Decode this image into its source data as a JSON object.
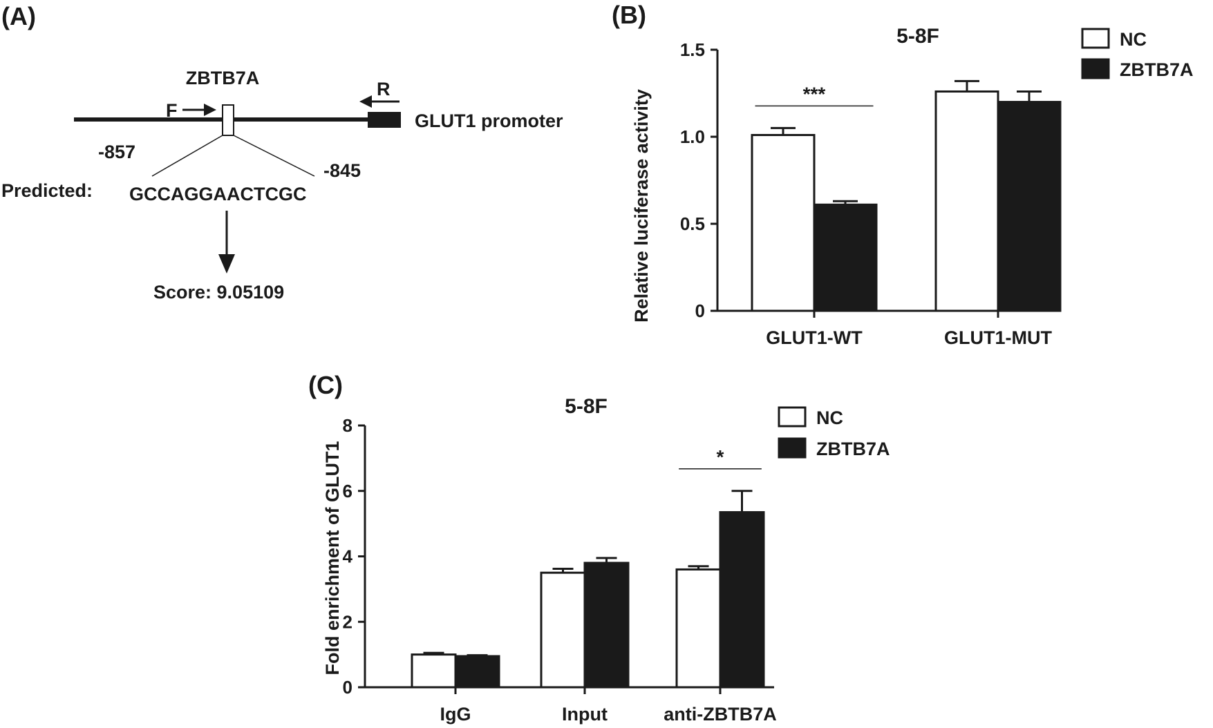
{
  "panel_labels": {
    "a": "(A)",
    "b": "(B)",
    "c": "(C)"
  },
  "diagram": {
    "tf_name": "ZBTB7A",
    "forward_primer": "F",
    "reverse_primer": "R",
    "promoter_label": "GLUT1 promoter",
    "start_position": "-857",
    "end_position": "-845",
    "predicted_label": "Predicted:",
    "sequence": "GCCAGGAACTCGC",
    "score_text": "Score: 9.05109"
  },
  "chart_data": [
    {
      "id": "B",
      "type": "bar",
      "title": "5-8F",
      "xlabel": "",
      "ylabel": "Relative luciferase activity",
      "ylim": [
        0,
        1.5
      ],
      "yticks": [
        "0",
        "0.5",
        "1.0",
        "1.5"
      ],
      "ytick_values": [
        0,
        0.5,
        1.0,
        1.5
      ],
      "categories": [
        "GLUT1-WT",
        "GLUT1-MUT"
      ],
      "series": [
        {
          "name": "NC",
          "color": "#ffffff",
          "values": [
            1.01,
            1.26
          ],
          "errors": [
            0.04,
            0.06
          ]
        },
        {
          "name": "ZBTB7A",
          "color": "#1a1a1a",
          "values": [
            0.61,
            1.2
          ],
          "errors": [
            0.02,
            0.06
          ]
        }
      ],
      "significance": [
        {
          "category": "GLUT1-WT",
          "label": "***"
        }
      ],
      "legend": "top-right",
      "grid": false
    },
    {
      "id": "C",
      "type": "bar",
      "title": "5-8F",
      "xlabel": "",
      "ylabel": "Fold enrichment of GLUT1",
      "ylim": [
        0,
        8
      ],
      "yticks": [
        "0",
        "2",
        "4",
        "6",
        "8"
      ],
      "ytick_values": [
        0,
        2,
        4,
        6,
        8
      ],
      "categories": [
        "IgG",
        "Input",
        "anti-ZBTB7A"
      ],
      "series": [
        {
          "name": "NC",
          "color": "#ffffff",
          "values": [
            1.0,
            3.5,
            3.6
          ],
          "errors": [
            0.05,
            0.12,
            0.1
          ]
        },
        {
          "name": "ZBTB7A",
          "color": "#1a1a1a",
          "values": [
            0.95,
            3.8,
            5.35
          ],
          "errors": [
            0.03,
            0.15,
            0.65
          ]
        }
      ],
      "significance": [
        {
          "category": "anti-ZBTB7A",
          "label": "*"
        }
      ],
      "legend": "top-right",
      "grid": false
    }
  ]
}
